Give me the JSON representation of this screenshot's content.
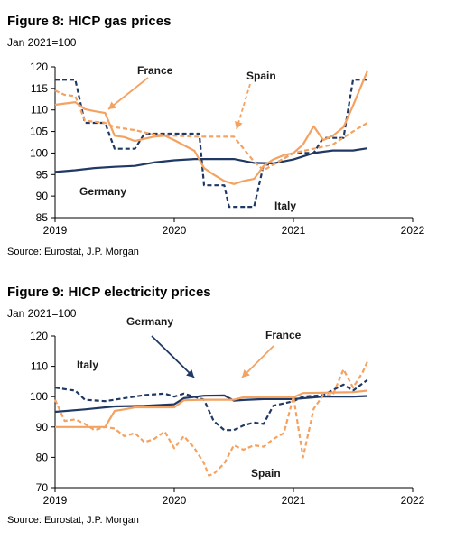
{
  "chart_data": [
    {
      "type": "line",
      "title": "Figure 8: HICP gas prices",
      "subtitle": "Jan 2021=100",
      "source": "Source: Eurostat, J.P. Morgan",
      "xlim": [
        2019,
        2022
      ],
      "ylim": [
        85,
        120
      ],
      "x_ticks": [
        "2019",
        "2020",
        "2021",
        "2022"
      ],
      "y_ticks": [
        "85",
        "90",
        "95",
        "100",
        "105",
        "110",
        "115",
        "120"
      ],
      "grid": false,
      "annotations": [
        "France",
        "Spain",
        "Germany",
        "Italy"
      ],
      "series": [
        {
          "name": "Germany",
          "color": "#1f3864",
          "dash": "solid",
          "x": [
            2019.0,
            2019.17,
            2019.33,
            2019.5,
            2019.67,
            2019.83,
            2020.0,
            2020.17,
            2020.33,
            2020.5,
            2020.67,
            2020.83,
            2021.0,
            2021.17,
            2021.33,
            2021.5,
            2021.62
          ],
          "y": [
            95.6,
            96.0,
            96.5,
            96.8,
            97.0,
            97.8,
            98.3,
            98.6,
            98.6,
            98.6,
            97.7,
            97.6,
            98.5,
            100.0,
            100.6,
            100.6,
            101.1
          ]
        },
        {
          "name": "Italy",
          "color": "#1f3864",
          "dash": "dashed",
          "x": [
            2019.0,
            2019.17,
            2019.25,
            2019.42,
            2019.5,
            2019.67,
            2019.75,
            2020.0,
            2020.21,
            2020.25,
            2020.42,
            2020.46,
            2020.67,
            2020.75,
            2020.83,
            2021.0,
            2021.17,
            2021.25,
            2021.42,
            2021.5,
            2021.62
          ],
          "y": [
            117.0,
            117.0,
            107.0,
            107.0,
            101.0,
            101.0,
            104.5,
            104.5,
            104.5,
            92.5,
            92.5,
            87.5,
            87.5,
            97.3,
            97.3,
            100.0,
            100.0,
            103.5,
            103.5,
            117.0,
            117.0
          ]
        },
        {
          "name": "France",
          "color": "#f4a261",
          "dash": "solid",
          "x": [
            2019.0,
            2019.17,
            2019.25,
            2019.33,
            2019.42,
            2019.5,
            2019.58,
            2019.67,
            2019.75,
            2019.83,
            2019.92,
            2020.0,
            2020.17,
            2020.25,
            2020.33,
            2020.42,
            2020.5,
            2020.58,
            2020.67,
            2020.75,
            2020.83,
            2020.92,
            2021.0,
            2021.08,
            2021.17,
            2021.25,
            2021.33,
            2021.42,
            2021.5,
            2021.62
          ],
          "y": [
            111.2,
            111.8,
            110.2,
            109.7,
            109.3,
            104.0,
            103.7,
            102.8,
            103.3,
            103.8,
            104.0,
            103.0,
            100.5,
            96.5,
            95.0,
            93.5,
            92.8,
            93.5,
            94.0,
            97.0,
            98.5,
            99.5,
            100.0,
            102.0,
            106.2,
            103.0,
            104.0,
            106.0,
            111.0,
            119.0
          ]
        },
        {
          "name": "Spain",
          "color": "#f4a261",
          "dash": "dashed",
          "x": [
            2019.0,
            2019.08,
            2019.17,
            2019.25,
            2019.42,
            2019.5,
            2019.67,
            2019.83,
            2020.0,
            2020.17,
            2020.5,
            2020.67,
            2020.75,
            2021.0,
            2021.17,
            2021.33,
            2021.5,
            2021.62
          ],
          "y": [
            114.5,
            113.5,
            113.2,
            107.5,
            107.0,
            106.0,
            105.3,
            104.3,
            104.0,
            103.8,
            103.8,
            98.0,
            96.0,
            100.0,
            101.0,
            102.0,
            105.0,
            107.0
          ]
        }
      ]
    },
    {
      "type": "line",
      "title": "Figure 9: HICP electricity prices",
      "subtitle": "Jan 2021=100",
      "source": "Source: Eurostat, J.P. Morgan",
      "xlim": [
        2019,
        2022
      ],
      "ylim": [
        70,
        120
      ],
      "x_ticks": [
        "2019",
        "2020",
        "2021",
        "2022"
      ],
      "y_ticks": [
        "70",
        "80",
        "90",
        "100",
        "110",
        "120"
      ],
      "grid": false,
      "annotations": [
        "Germany",
        "France",
        "Italy",
        "Spain"
      ],
      "series": [
        {
          "name": "Germany",
          "color": "#1f3864",
          "dash": "solid",
          "x": [
            2019.0,
            2019.25,
            2019.5,
            2019.75,
            2020.0,
            2020.08,
            2020.25,
            2020.42,
            2020.5,
            2020.58,
            2020.75,
            2021.0,
            2021.25,
            2021.5,
            2021.62
          ],
          "y": [
            95.0,
            95.8,
            96.8,
            97.0,
            97.5,
            99.5,
            100.3,
            100.4,
            98.7,
            98.9,
            99.2,
            99.2,
            100.0,
            100.0,
            100.2
          ]
        },
        {
          "name": "Italy",
          "color": "#1f3864",
          "dash": "dashed",
          "x": [
            2019.0,
            2019.08,
            2019.17,
            2019.25,
            2019.42,
            2019.58,
            2019.75,
            2019.92,
            2020.0,
            2020.08,
            2020.25,
            2020.33,
            2020.42,
            2020.5,
            2020.58,
            2020.67,
            2020.75,
            2020.83,
            2021.0,
            2021.08,
            2021.25,
            2021.42,
            2021.5,
            2021.62
          ],
          "y": [
            103.0,
            102.5,
            102.0,
            99.0,
            98.5,
            99.5,
            100.5,
            101.0,
            100.0,
            101.0,
            99.0,
            92.0,
            89.0,
            89.0,
            90.5,
            91.5,
            91.0,
            97.0,
            98.5,
            100.0,
            100.5,
            104.0,
            102.0,
            105.5
          ]
        },
        {
          "name": "France",
          "color": "#f4a261",
          "dash": "solid",
          "x": [
            2019.0,
            2019.25,
            2019.42,
            2019.5,
            2019.58,
            2019.67,
            2020.0,
            2020.08,
            2020.25,
            2020.5,
            2020.58,
            2020.75,
            2021.0,
            2021.08,
            2021.25,
            2021.5,
            2021.62
          ],
          "y": [
            90.0,
            90.0,
            90.0,
            95.3,
            95.8,
            96.5,
            96.5,
            98.8,
            99.0,
            99.0,
            99.8,
            99.8,
            99.8,
            101.2,
            101.3,
            101.5,
            102.0
          ]
        },
        {
          "name": "Spain",
          "color": "#f4a261",
          "dash": "dashed",
          "x": [
            2019.0,
            2019.08,
            2019.17,
            2019.25,
            2019.33,
            2019.42,
            2019.5,
            2019.58,
            2019.67,
            2019.75,
            2019.83,
            2019.92,
            2020.0,
            2020.08,
            2020.17,
            2020.25,
            2020.29,
            2020.33,
            2020.42,
            2020.5,
            2020.58,
            2020.67,
            2020.75,
            2020.83,
            2020.92,
            2021.0,
            2021.08,
            2021.17,
            2021.25,
            2021.33,
            2021.42,
            2021.5,
            2021.58,
            2021.62
          ],
          "y": [
            99.0,
            92.0,
            92.5,
            91.0,
            89.0,
            90.0,
            89.5,
            87.0,
            88.0,
            85.0,
            86.0,
            88.5,
            83.0,
            87.0,
            83.0,
            78.0,
            74.0,
            74.5,
            78.0,
            84.0,
            82.5,
            84.0,
            83.5,
            86.0,
            88.0,
            100.0,
            80.0,
            96.0,
            100.5,
            100.5,
            109.0,
            103.0,
            108.0,
            111.5
          ]
        }
      ]
    }
  ]
}
